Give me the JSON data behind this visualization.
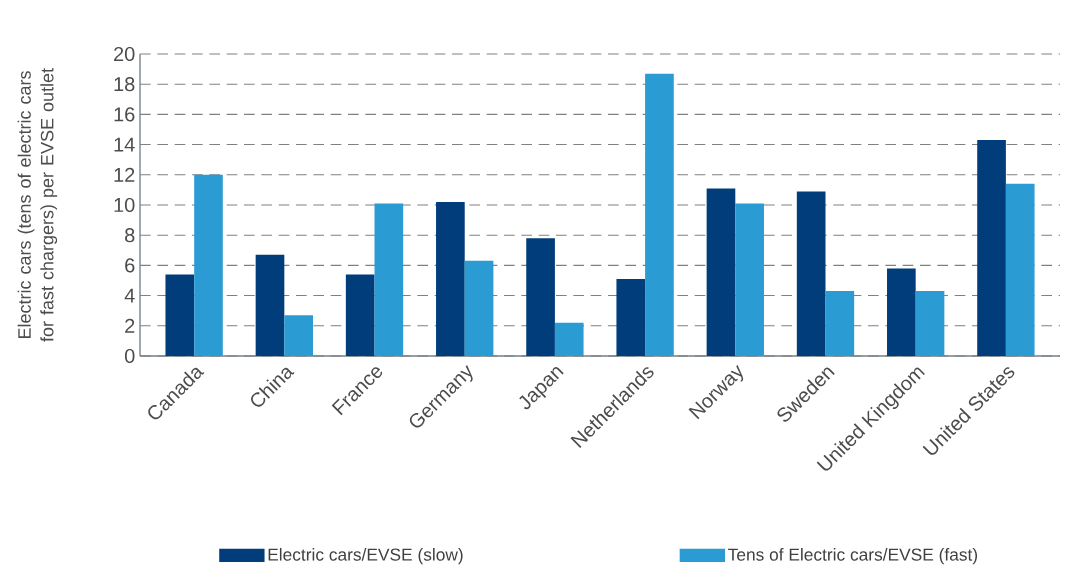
{
  "chart_data": {
    "type": "bar",
    "ylabel": "Electric cars (tens of electric cars for fast chargers) per EVSE outlet",
    "categories": [
      "Canada",
      "China",
      "France",
      "Germany",
      "Japan",
      "Netherlands",
      "Norway",
      "Sweden",
      "United Kingdom",
      "United States"
    ],
    "series": [
      {
        "name": "Electric cars/EVSE (slow)",
        "color": "#003d7a",
        "values": [
          5.4,
          6.7,
          5.4,
          10.2,
          7.8,
          5.1,
          11.1,
          10.9,
          5.8,
          14.3
        ]
      },
      {
        "name": "Tens of Electric cars/EVSE (fast)",
        "color": "#2a9bd3",
        "values": [
          12.0,
          2.7,
          10.1,
          6.3,
          2.2,
          18.7,
          10.1,
          4.3,
          4.3,
          11.4
        ]
      }
    ],
    "ylim": [
      0,
      20
    ],
    "yticks": [
      0,
      2,
      4,
      6,
      8,
      10,
      12,
      14,
      16,
      18,
      20
    ],
    "grid": "y",
    "legend": "bottom"
  }
}
